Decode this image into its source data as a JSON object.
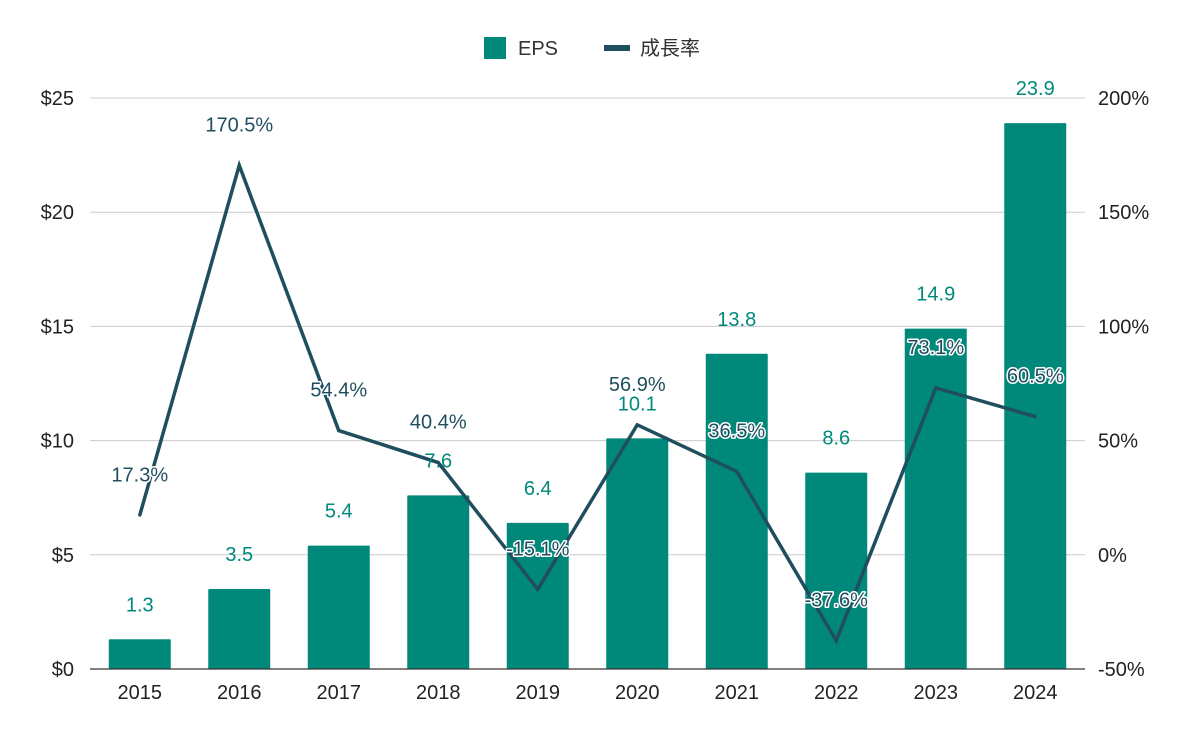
{
  "chart_data": {
    "type": "bar",
    "categories": [
      "2015",
      "2016",
      "2017",
      "2018",
      "2019",
      "2020",
      "2021",
      "2022",
      "2023",
      "2024"
    ],
    "series": [
      {
        "name": "EPS",
        "type": "bar",
        "axis": "left",
        "color": "#00897B",
        "values": [
          1.3,
          3.5,
          5.4,
          7.6,
          6.4,
          10.1,
          13.8,
          8.6,
          14.9,
          23.9
        ],
        "labels": [
          "1.3",
          "3.5",
          "5.4",
          "7.6",
          "6.4",
          "10.1",
          "13.8",
          "8.6",
          "14.9",
          "23.9"
        ]
      },
      {
        "name": "成長率",
        "type": "line",
        "axis": "right",
        "color": "#1F4E5F",
        "values": [
          17.3,
          170.5,
          54.4,
          40.4,
          -15.1,
          56.9,
          36.5,
          -37.6,
          73.1,
          60.5
        ],
        "labels": [
          "17.3%",
          "170.5%",
          "54.4%",
          "40.4%",
          "-15.1%",
          "56.9%",
          "36.5%",
          "-37.6%",
          "73.1%",
          "60.5%"
        ]
      }
    ],
    "y_left": {
      "ylim": [
        0,
        25
      ],
      "ticks": [
        0,
        5,
        10,
        15,
        20,
        25
      ],
      "tick_labels": [
        "$0",
        "$5",
        "$10",
        "$15",
        "$20",
        "$25"
      ]
    },
    "y_right": {
      "ylim": [
        -50,
        200
      ],
      "ticks": [
        -50,
        0,
        50,
        100,
        150,
        200
      ],
      "tick_labels": [
        "-50%",
        "0%",
        "50%",
        "100%",
        "150%",
        "200%"
      ]
    },
    "title": "",
    "xlabel": "",
    "ylabel": "",
    "grid": true,
    "legend_position": "top-center"
  }
}
